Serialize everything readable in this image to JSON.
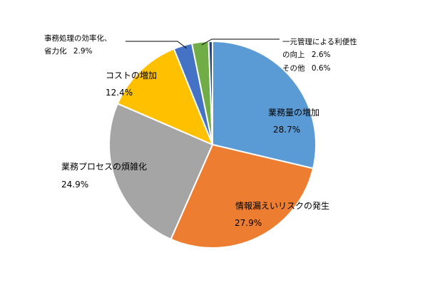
{
  "chart_data": {
    "type": "pie",
    "unit": "%",
    "start": "12 o'clock",
    "direction": "clockwise",
    "slices": [
      {
        "label": "業務量の増加",
        "value": 28.7,
        "value_text": "28.7%",
        "color": "#5b9bd5"
      },
      {
        "label": "情報漏えいリスクの発生",
        "value": 27.9,
        "value_text": "27.9%",
        "color": "#ed7d31"
      },
      {
        "label": "業務プロセスの煩雑化",
        "value": 24.9,
        "value_text": "24.9%",
        "color": "#a5a5a5"
      },
      {
        "label": "コストの増加",
        "value": 12.4,
        "value_text": "12.4%",
        "color": "#ffc000"
      },
      {
        "label": "事務処理の効率化、省力化",
        "label_line1": "事務処理の効率化、",
        "label_line2": "省力化",
        "value": 2.9,
        "value_text": "2.9%",
        "color": "#4472c4"
      },
      {
        "label": "一元管理による利便性の向上",
        "label_line1": "一元管理による利便性",
        "label_line2": "の向上",
        "value": 2.6,
        "value_text": "2.6%",
        "color": "#70ad47"
      },
      {
        "label": "その他",
        "value": 0.6,
        "value_text": "0.6%",
        "color": "#264478"
      }
    ]
  }
}
